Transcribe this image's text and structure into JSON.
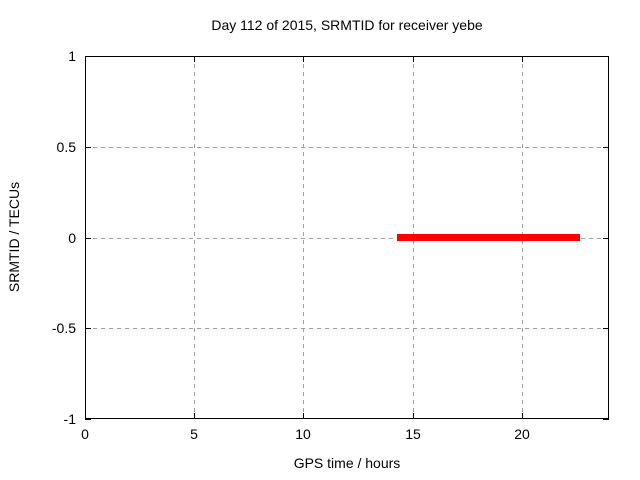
{
  "title": "Day 112 of 2015, SRMTID for receiver yebe",
  "colors": {
    "background": "#ffffff",
    "axis": "#000000",
    "grid": "#a0a0a0",
    "series": "#ff0000"
  },
  "chart_data": {
    "type": "line",
    "title": "Day 112 of 2015, SRMTID for receiver yebe",
    "xlabel": "GPS time / hours",
    "ylabel": "SRMTID / TECUs",
    "xlim": [
      0,
      24
    ],
    "ylim": [
      -1,
      1
    ],
    "grid": true,
    "grid_style": "dashed",
    "legend": "none",
    "xticks": [
      {
        "v": 0,
        "label": "0"
      },
      {
        "v": 5,
        "label": "5"
      },
      {
        "v": 10,
        "label": "10"
      },
      {
        "v": 15,
        "label": "15"
      },
      {
        "v": 20,
        "label": "20"
      }
    ],
    "yticks": [
      {
        "v": 1,
        "label": "1"
      },
      {
        "v": 0.5,
        "label": "0.5"
      },
      {
        "v": 0,
        "label": "0"
      },
      {
        "v": -0.5,
        "label": "-0.5"
      },
      {
        "v": -1,
        "label": "-1"
      }
    ],
    "series": [
      {
        "name": "SRMTID",
        "color": "#ff0000",
        "linewidth": 7,
        "x": [
          14.3,
          22.7
        ],
        "y": [
          0,
          0
        ]
      }
    ]
  }
}
